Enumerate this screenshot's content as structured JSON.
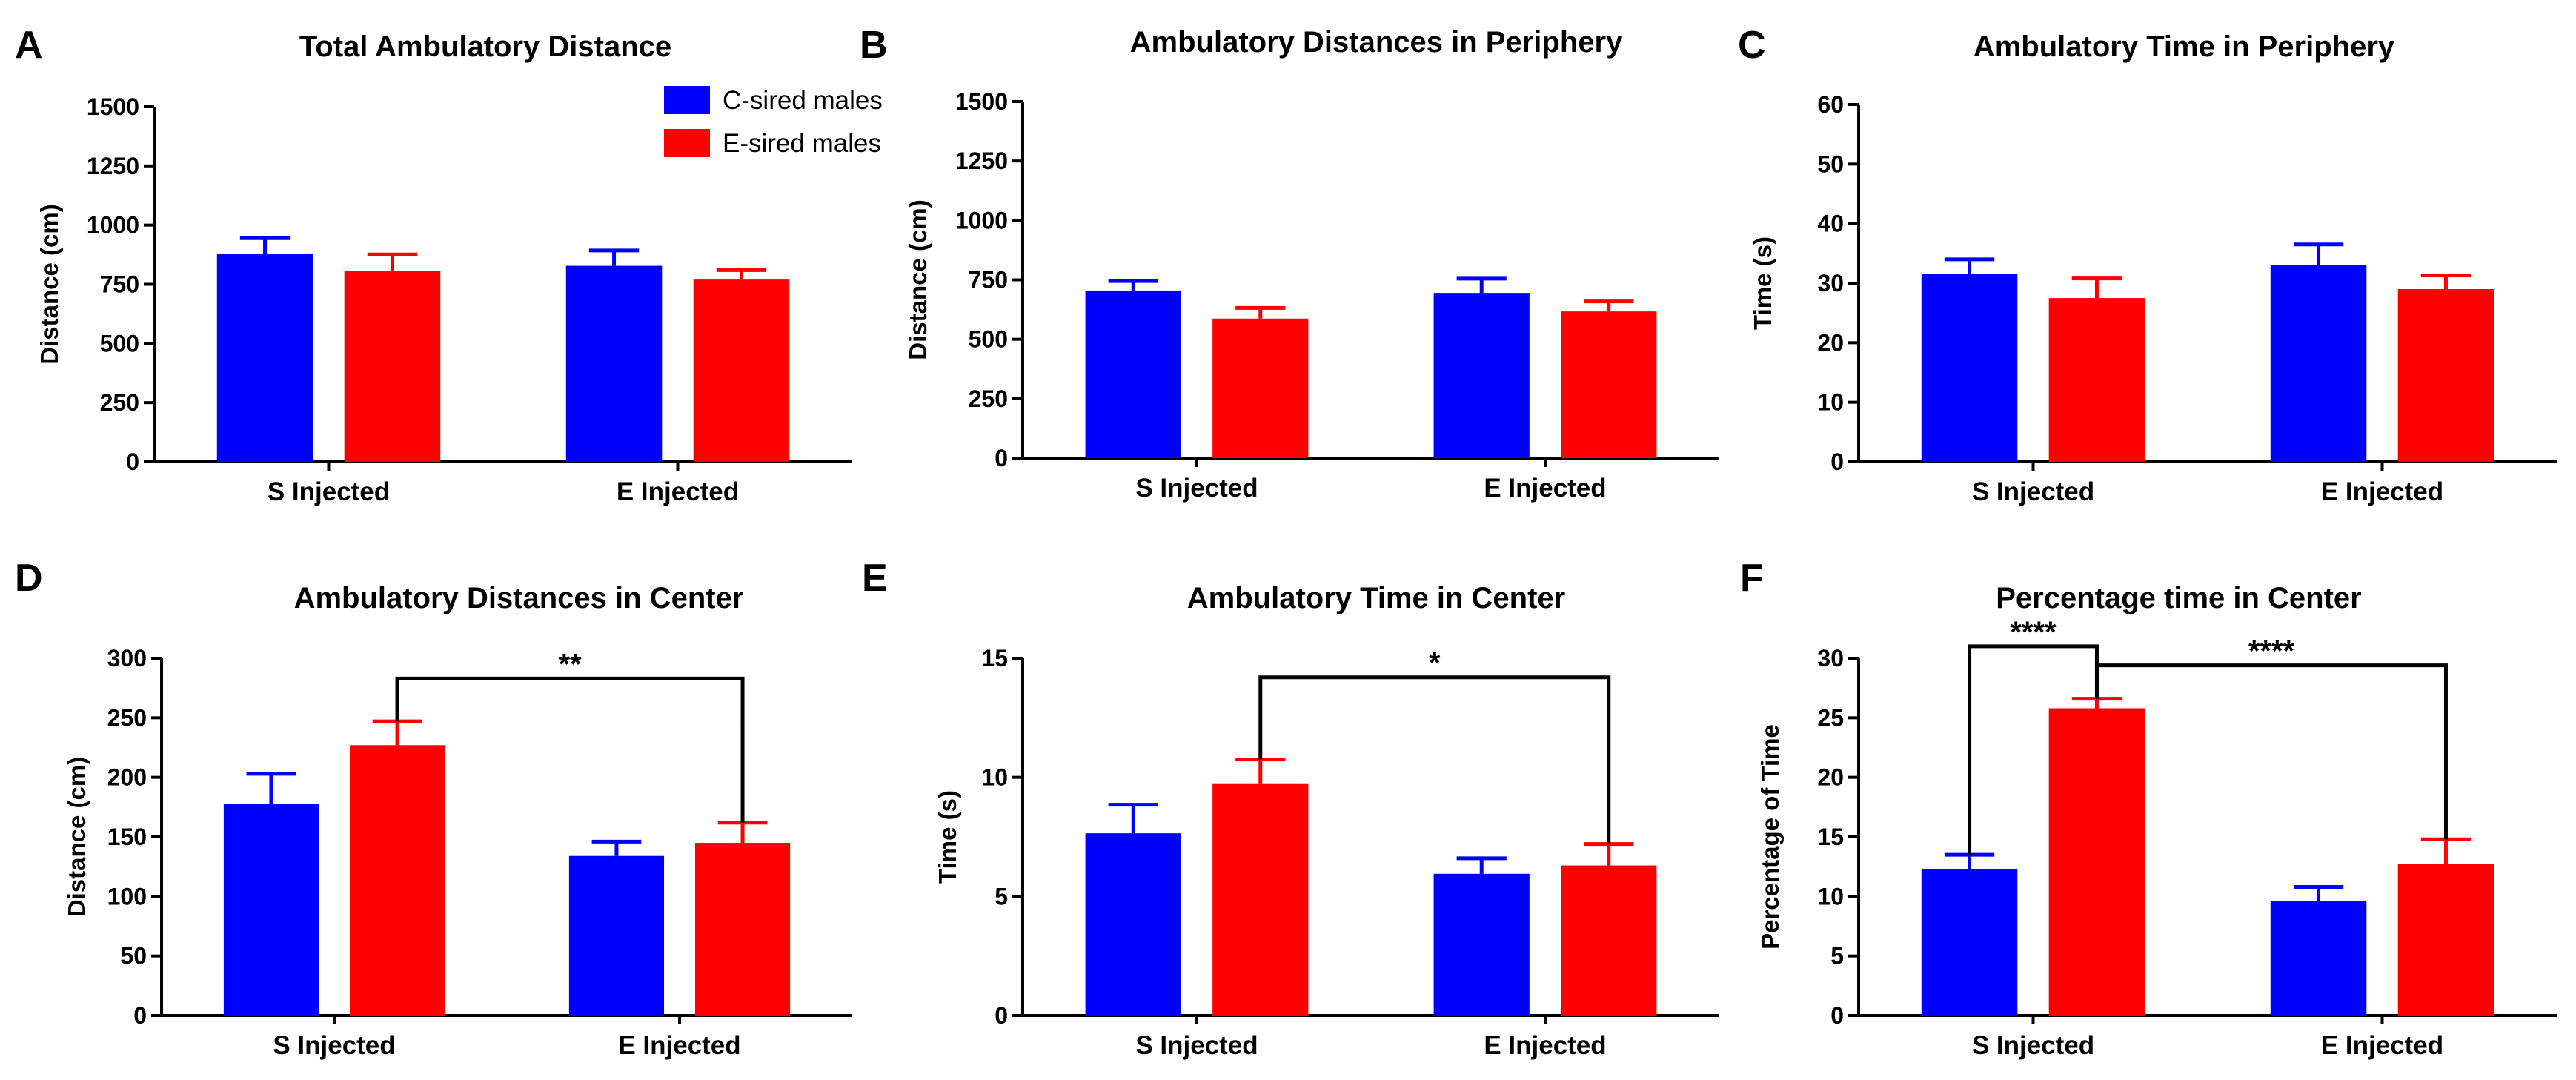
{
  "colors": {
    "c_sired": "#0000FF",
    "e_sired": "#FF0000",
    "axis": "#000000"
  },
  "legend": {
    "placement": "top-right of panel A",
    "items": [
      "C-sired males",
      "E-sired males"
    ]
  },
  "chart_data": [
    {
      "type": "bar",
      "panel": "A",
      "title": "Total Ambulatory Distance",
      "ylabel": "Distance (cm)",
      "xlabel": "",
      "categories": [
        "S Injected",
        "E Injected"
      ],
      "ylim": [
        0,
        1500
      ],
      "yticks": [
        0,
        250,
        500,
        750,
        1000,
        1250,
        1500
      ],
      "series": [
        {
          "name": "C-sired males",
          "values": [
            880,
            828
          ],
          "errors": [
            65,
            65
          ]
        },
        {
          "name": "E-sired males",
          "values": [
            808,
            770
          ],
          "errors": [
            68,
            40
          ]
        }
      ],
      "significance": []
    },
    {
      "type": "bar",
      "panel": "B",
      "title": "Ambulatory Distances in Periphery",
      "ylabel": "Distance (cm)",
      "xlabel": "",
      "categories": [
        "S Injected",
        "E Injected"
      ],
      "ylim": [
        0,
        1500
      ],
      "yticks": [
        0,
        250,
        500,
        750,
        1000,
        1250,
        1500
      ],
      "series": [
        {
          "name": "C-sired males",
          "values": [
            705,
            695
          ],
          "errors": [
            40,
            60
          ]
        },
        {
          "name": "E-sired males",
          "values": [
            587,
            617
          ],
          "errors": [
            45,
            42
          ]
        }
      ],
      "significance": []
    },
    {
      "type": "bar",
      "panel": "C",
      "title": "Ambulatory Time in Periphery",
      "ylabel": "Time (s)",
      "xlabel": "",
      "categories": [
        "S Injected",
        "E Injected"
      ],
      "ylim": [
        0,
        60
      ],
      "yticks": [
        0,
        10,
        20,
        30,
        40,
        50,
        60
      ],
      "series": [
        {
          "name": "C-sired males",
          "values": [
            31.5,
            33.0
          ],
          "errors": [
            2.5,
            3.5
          ]
        },
        {
          "name": "E-sired males",
          "values": [
            27.5,
            29.0
          ],
          "errors": [
            3.3,
            2.3
          ]
        }
      ],
      "significance": []
    },
    {
      "type": "bar",
      "panel": "D",
      "title": "Ambulatory Distances in Center",
      "ylabel": "Distance (cm)",
      "xlabel": "",
      "categories": [
        "S Injected",
        "E Injected"
      ],
      "ylim": [
        0,
        300
      ],
      "yticks": [
        0,
        50,
        100,
        150,
        200,
        250,
        300
      ],
      "series": [
        {
          "name": "C-sired males",
          "values": [
            178,
            134
          ],
          "errors": [
            25,
            12
          ]
        },
        {
          "name": "E-sired males",
          "values": [
            227,
            145
          ],
          "errors": [
            20,
            17
          ]
        }
      ],
      "significance": [
        {
          "from": [
            0,
            1
          ],
          "to": [
            1,
            1
          ],
          "label": "**",
          "y": 283
        }
      ]
    },
    {
      "type": "bar",
      "panel": "E",
      "title": "Ambulatory Time in Center",
      "ylabel": "Time (s)",
      "xlabel": "",
      "categories": [
        "S Injected",
        "E Injected"
      ],
      "ylim": [
        0,
        15
      ],
      "yticks": [
        0,
        5,
        10,
        15
      ],
      "series": [
        {
          "name": "C-sired males",
          "values": [
            7.65,
            5.95
          ],
          "errors": [
            1.2,
            0.65
          ]
        },
        {
          "name": "E-sired males",
          "values": [
            9.75,
            6.3
          ],
          "errors": [
            1.0,
            0.9
          ]
        }
      ],
      "significance": [
        {
          "from": [
            0,
            1
          ],
          "to": [
            1,
            1
          ],
          "label": "*",
          "y": 14.2
        }
      ]
    },
    {
      "type": "bar",
      "panel": "F",
      "title": "Percentage time in Center",
      "ylabel": "Percentage of Time",
      "xlabel": "",
      "categories": [
        "S Injected",
        "E Injected"
      ],
      "ylim": [
        0,
        30
      ],
      "yticks": [
        0,
        5,
        10,
        15,
        20,
        25,
        30
      ],
      "series": [
        {
          "name": "C-sired males",
          "values": [
            12.3,
            9.6
          ],
          "errors": [
            1.2,
            1.2
          ]
        },
        {
          "name": "E-sired males",
          "values": [
            25.8,
            12.7
          ],
          "errors": [
            0.8,
            2.1
          ]
        }
      ],
      "significance": [
        {
          "from": [
            0,
            0
          ],
          "to": [
            0,
            1
          ],
          "label": "****",
          "y": 31.0
        },
        {
          "from": [
            0,
            1
          ],
          "to": [
            1,
            1
          ],
          "label": "****",
          "y": 29.4
        }
      ]
    }
  ]
}
